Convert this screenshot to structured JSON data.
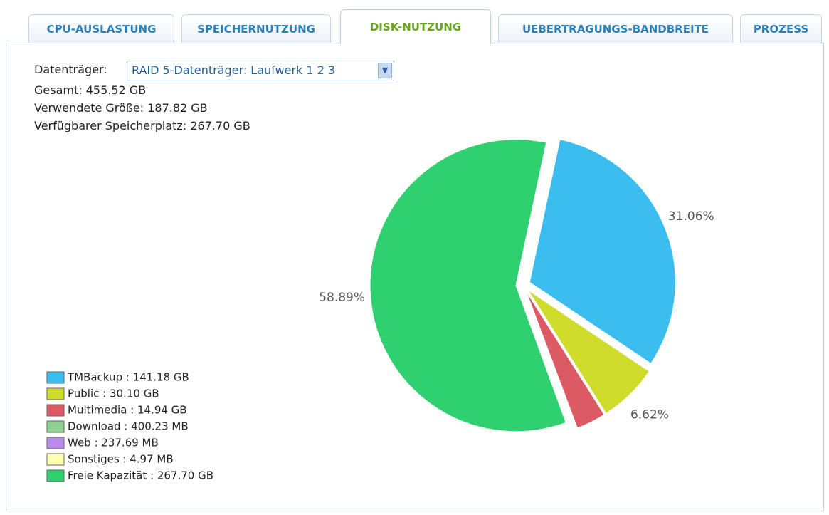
{
  "tabs": [
    "CPU-AUSLASTUNG",
    "SPEICHERNUTZUNG",
    "DISK-NUTZUNG",
    "UEBERTRAGUNGS-BANDBREITE",
    "PROZESS"
  ],
  "volume": {
    "label": "Datenträger:",
    "selected": "RAID 5-Datenträger: Laufwerk 1 2 3"
  },
  "summary": [
    "Gesamt: 455.52 GB",
    "Verwendete Größe: 187.82 GB",
    "Verfügbarer Speicherplatz: 267.70 GB"
  ],
  "chart_data": {
    "type": "pie",
    "categories": [
      "TMBackup : 141.18 GB",
      "Public : 30.10 GB",
      "Multimedia : 14.94 GB",
      "Download : 400.23 MB",
      "Web : 237.69 MB",
      "Sonstiges : 4.97 MB",
      "Freie Kapazität : 267.70 GB"
    ],
    "values": [
      31.06,
      6.62,
      3.28,
      0.09,
      0.05,
      0.001,
      58.89
    ],
    "value_labels": [
      "31.06%",
      "6.62%",
      null,
      null,
      null,
      null,
      "58.89%"
    ],
    "colors": [
      "#3cbdf0",
      "#cfdc2c",
      "#dc5a64",
      "#8fcf8f",
      "#b98ae8",
      "#ffffb0",
      "#2fd070"
    ]
  }
}
